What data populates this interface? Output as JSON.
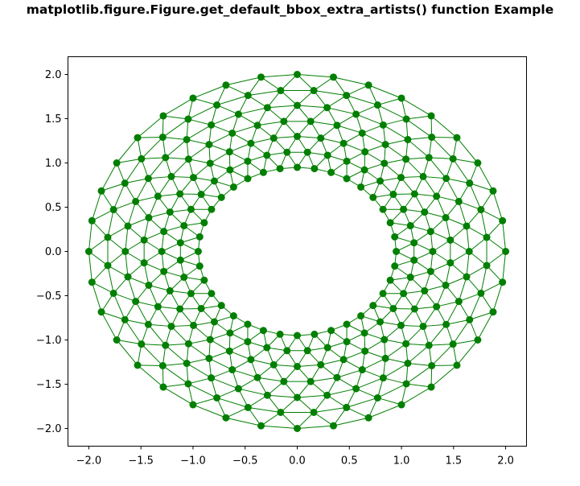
{
  "chart_data": {
    "type": "scatter",
    "title": "matplotlib.figure.Figure.get_default_bbox_extra_artists() function Example",
    "xlabel": "",
    "ylabel": "",
    "xlim": [
      -2.2,
      2.2
    ],
    "ylim": [
      -2.2,
      2.2
    ],
    "xticks": [
      -2.0,
      -1.5,
      -1.0,
      -0.5,
      0.0,
      0.5,
      1.0,
      1.5,
      2.0
    ],
    "yticks": [
      -2.0,
      -1.5,
      -1.0,
      -0.5,
      0.0,
      0.5,
      1.0,
      1.5,
      2.0
    ],
    "grid": false,
    "series": [
      {
        "marker_color": "#007f00",
        "edge_color": "#007f00",
        "line_width": 1,
        "marker": "circle",
        "annulus": {
          "radii": [
            0.95,
            1.125,
            1.3,
            1.475,
            1.65,
            1.825,
            2.0
          ],
          "points_per_ring": 36
        }
      }
    ]
  }
}
